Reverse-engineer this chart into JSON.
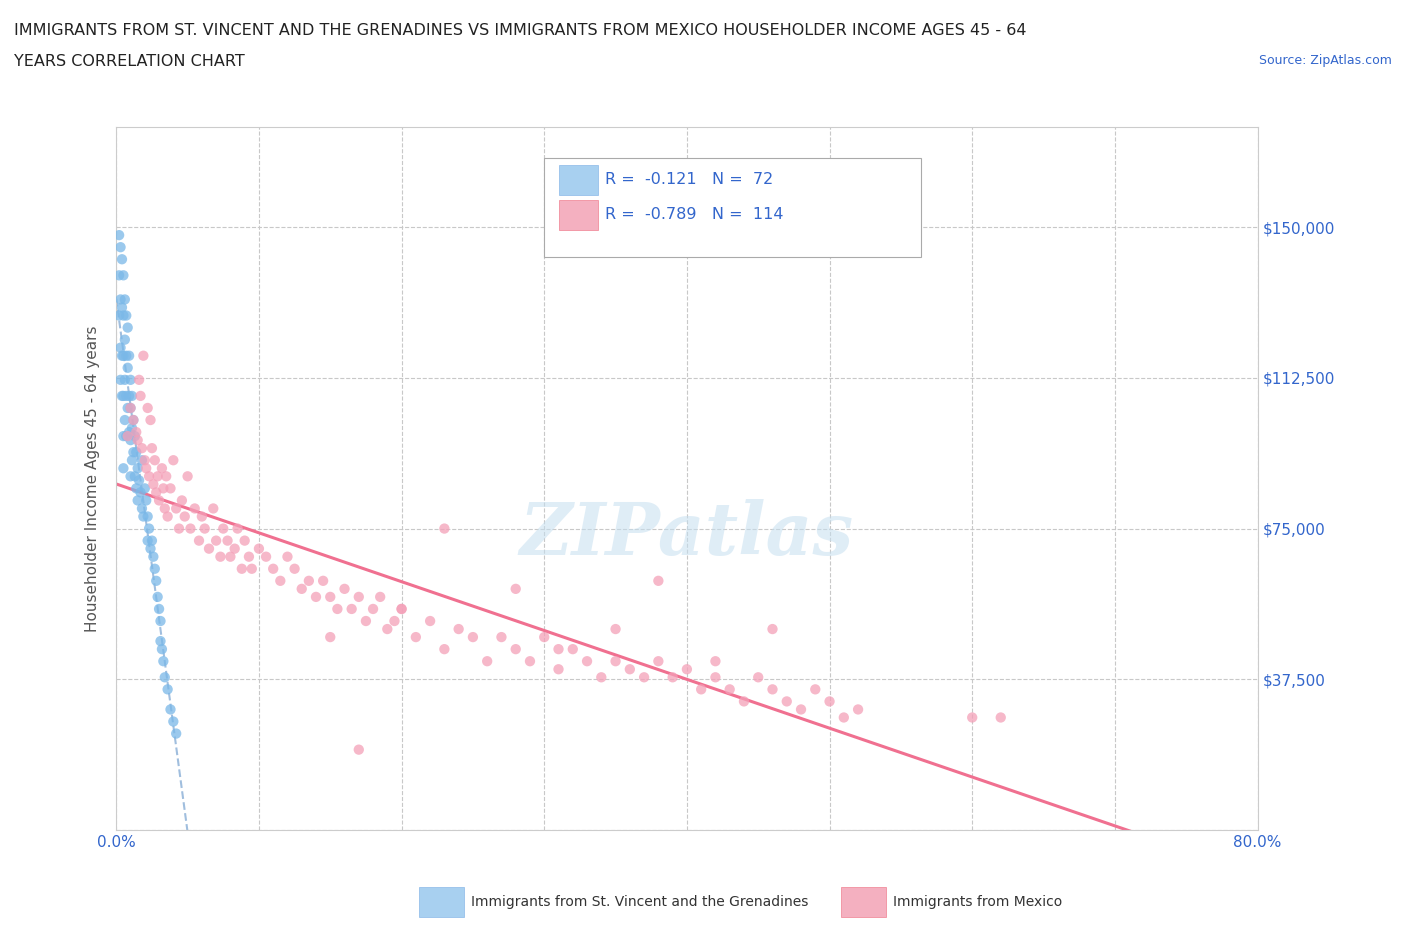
{
  "title_line1": "IMMIGRANTS FROM ST. VINCENT AND THE GRENADINES VS IMMIGRANTS FROM MEXICO HOUSEHOLDER INCOME AGES 45 - 64",
  "title_line2": "YEARS CORRELATION CHART",
  "source_text": "Source: ZipAtlas.com",
  "ylabel": "Householder Income Ages 45 - 64 years",
  "x_min": 0.0,
  "x_max": 0.8,
  "y_min": 0,
  "y_max": 175000,
  "x_ticks": [
    0.0,
    0.1,
    0.2,
    0.3,
    0.4,
    0.5,
    0.6,
    0.7,
    0.8
  ],
  "y_ticks": [
    0,
    37500,
    75000,
    112500,
    150000
  ],
  "y_tick_labels": [
    "",
    "$37,500",
    "$75,000",
    "$112,500",
    "$150,000"
  ],
  "grid_color": "#c8c8c8",
  "background_color": "#ffffff",
  "series1_color": "#7ab8e8",
  "series2_color": "#f4a0b8",
  "series2_line_color": "#f07090",
  "series1_line_color": "#a0bede",
  "watermark_color": "#c5dff0",
  "s1_x": [
    0.002,
    0.002,
    0.002,
    0.003,
    0.003,
    0.003,
    0.003,
    0.004,
    0.004,
    0.004,
    0.004,
    0.005,
    0.005,
    0.005,
    0.005,
    0.005,
    0.005,
    0.006,
    0.006,
    0.006,
    0.006,
    0.007,
    0.007,
    0.007,
    0.007,
    0.008,
    0.008,
    0.008,
    0.009,
    0.009,
    0.009,
    0.01,
    0.01,
    0.01,
    0.01,
    0.011,
    0.011,
    0.011,
    0.012,
    0.012,
    0.013,
    0.013,
    0.014,
    0.014,
    0.015,
    0.015,
    0.016,
    0.017,
    0.018,
    0.018,
    0.019,
    0.02,
    0.021,
    0.022,
    0.022,
    0.023,
    0.024,
    0.025,
    0.026,
    0.027,
    0.028,
    0.029,
    0.03,
    0.031,
    0.031,
    0.032,
    0.033,
    0.034,
    0.036,
    0.038,
    0.04,
    0.042
  ],
  "s1_y": [
    148000,
    138000,
    128000,
    145000,
    132000,
    120000,
    112000,
    142000,
    130000,
    118000,
    108000,
    138000,
    128000,
    118000,
    108000,
    98000,
    90000,
    132000,
    122000,
    112000,
    102000,
    128000,
    118000,
    108000,
    98000,
    125000,
    115000,
    105000,
    118000,
    108000,
    99000,
    112000,
    105000,
    97000,
    88000,
    108000,
    100000,
    92000,
    102000,
    94000,
    98000,
    88000,
    94000,
    85000,
    90000,
    82000,
    87000,
    84000,
    80000,
    92000,
    78000,
    85000,
    82000,
    78000,
    72000,
    75000,
    70000,
    72000,
    68000,
    65000,
    62000,
    58000,
    55000,
    52000,
    47000,
    45000,
    42000,
    38000,
    35000,
    30000,
    27000,
    24000
  ],
  "s2_x": [
    0.008,
    0.01,
    0.012,
    0.014,
    0.015,
    0.016,
    0.017,
    0.018,
    0.019,
    0.02,
    0.021,
    0.022,
    0.023,
    0.024,
    0.025,
    0.026,
    0.027,
    0.028,
    0.029,
    0.03,
    0.032,
    0.033,
    0.034,
    0.035,
    0.036,
    0.038,
    0.04,
    0.042,
    0.044,
    0.046,
    0.048,
    0.05,
    0.052,
    0.055,
    0.058,
    0.06,
    0.062,
    0.065,
    0.068,
    0.07,
    0.073,
    0.075,
    0.078,
    0.08,
    0.083,
    0.085,
    0.088,
    0.09,
    0.093,
    0.095,
    0.1,
    0.105,
    0.11,
    0.115,
    0.12,
    0.125,
    0.13,
    0.135,
    0.14,
    0.145,
    0.15,
    0.155,
    0.16,
    0.165,
    0.17,
    0.175,
    0.18,
    0.185,
    0.19,
    0.195,
    0.2,
    0.21,
    0.22,
    0.23,
    0.24,
    0.25,
    0.26,
    0.27,
    0.28,
    0.29,
    0.3,
    0.31,
    0.32,
    0.33,
    0.34,
    0.35,
    0.36,
    0.37,
    0.38,
    0.39,
    0.4,
    0.41,
    0.42,
    0.43,
    0.44,
    0.45,
    0.46,
    0.47,
    0.48,
    0.49,
    0.5,
    0.51,
    0.52,
    0.35,
    0.38,
    0.28,
    0.31,
    0.42,
    0.2,
    0.23,
    0.46,
    0.15,
    0.17,
    0.6,
    0.62
  ],
  "s2_y": [
    98000,
    105000,
    102000,
    99000,
    97000,
    112000,
    108000,
    95000,
    118000,
    92000,
    90000,
    105000,
    88000,
    102000,
    95000,
    86000,
    92000,
    84000,
    88000,
    82000,
    90000,
    85000,
    80000,
    88000,
    78000,
    85000,
    92000,
    80000,
    75000,
    82000,
    78000,
    88000,
    75000,
    80000,
    72000,
    78000,
    75000,
    70000,
    80000,
    72000,
    68000,
    75000,
    72000,
    68000,
    70000,
    75000,
    65000,
    72000,
    68000,
    65000,
    70000,
    68000,
    65000,
    62000,
    68000,
    65000,
    60000,
    62000,
    58000,
    62000,
    58000,
    55000,
    60000,
    55000,
    58000,
    52000,
    55000,
    58000,
    50000,
    52000,
    55000,
    48000,
    52000,
    45000,
    50000,
    48000,
    42000,
    48000,
    45000,
    42000,
    48000,
    40000,
    45000,
    42000,
    38000,
    42000,
    40000,
    38000,
    42000,
    38000,
    40000,
    35000,
    38000,
    35000,
    32000,
    38000,
    35000,
    32000,
    30000,
    35000,
    32000,
    28000,
    30000,
    50000,
    62000,
    60000,
    45000,
    42000,
    55000,
    75000,
    50000,
    48000,
    20000,
    28000,
    28000
  ]
}
